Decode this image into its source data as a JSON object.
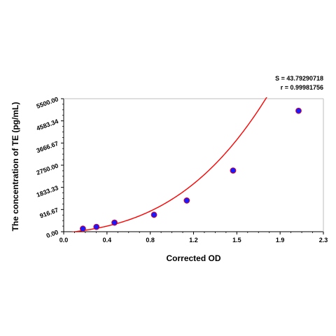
{
  "chart_data": {
    "type": "scatter",
    "xlabel": "Corrected OD",
    "ylabel": "The concentration of TE (pg/mL)",
    "xlim": [
      0.0,
      2.3
    ],
    "ylim": [
      0.0,
      5500.0
    ],
    "x_ticks": [
      "0.0",
      "0.4",
      "0.8",
      "1.2",
      "1.5",
      "1.9",
      "2.3"
    ],
    "x_tick_values": [
      0.0,
      0.38333,
      0.76667,
      1.15,
      1.53333,
      1.91667,
      2.3
    ],
    "y_ticks": [
      "0.00",
      "916.67",
      "1833.33",
      "2750.00",
      "3666.67",
      "4583.34",
      "5500.00"
    ],
    "y_tick_values": [
      0.0,
      916.67,
      1833.33,
      2750.0,
      3666.67,
      4583.34,
      5500.0
    ],
    "grid": false,
    "stats": {
      "s_label": "S = 43.79290718",
      "r_label": "r = 0.99981756"
    },
    "series": [
      {
        "values": [
          {
            "x": 0.17,
            "y": 125
          },
          {
            "x": 0.29,
            "y": 200
          },
          {
            "x": 0.45,
            "y": 375
          },
          {
            "x": 0.8,
            "y": 700
          },
          {
            "x": 1.09,
            "y": 1290
          },
          {
            "x": 1.5,
            "y": 2530
          },
          {
            "x": 2.08,
            "y": 5000
          }
        ],
        "color": "#1a1aff"
      }
    ],
    "fit_curve": {
      "color": "#ff0000",
      "x_range": [
        0.0,
        2.19
      ],
      "coefficients": [
        -50,
        455,
        530,
        530
      ]
    }
  }
}
